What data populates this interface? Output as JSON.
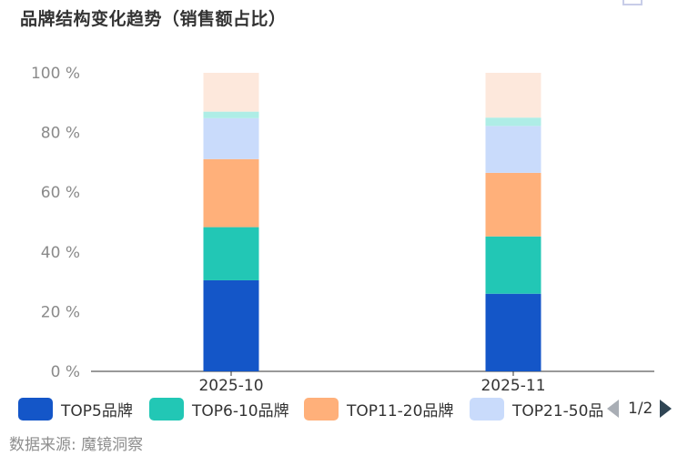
{
  "title": "品牌结构变化趋势（销售额占比）",
  "source": "数据来源: 魔镜洞察",
  "pager": {
    "text": "1/2"
  },
  "colors": {
    "top5": "#1456c8",
    "top6_10": "#22c7b5",
    "top11_20": "#ffb07a",
    "top21_50": "#c9dbfb",
    "top51_100": "#aeede6",
    "other": "#fde8dc"
  },
  "chart_data": {
    "type": "bar",
    "stacked": true,
    "categories": [
      "2025-10",
      "2025-11"
    ],
    "yticks": [
      "0 %",
      "20 %",
      "40 %",
      "60 %",
      "80 %",
      "100 %"
    ],
    "ylim": [
      0,
      100
    ],
    "legend_position": "bottom",
    "legend_visible": [
      "TOP5品牌",
      "TOP6-10品牌",
      "TOP11-20品牌",
      "TOP21-50品牌"
    ],
    "series": [
      {
        "name": "TOP5品牌",
        "color_key": "top5",
        "values": [
          30.5,
          26
        ]
      },
      {
        "name": "TOP6-10品牌",
        "color_key": "top6_10",
        "values": [
          17.8,
          19.2
        ]
      },
      {
        "name": "TOP11-20品牌",
        "color_key": "top11_20",
        "values": [
          22.8,
          21.3
        ]
      },
      {
        "name": "TOP21-50品牌",
        "color_key": "top21_50",
        "values": [
          13.7,
          15.7
        ]
      },
      {
        "color_key": "top51_100",
        "values": [
          2.2,
          2.8
        ]
      },
      {
        "color_key": "other",
        "values": [
          13,
          15
        ]
      }
    ]
  }
}
